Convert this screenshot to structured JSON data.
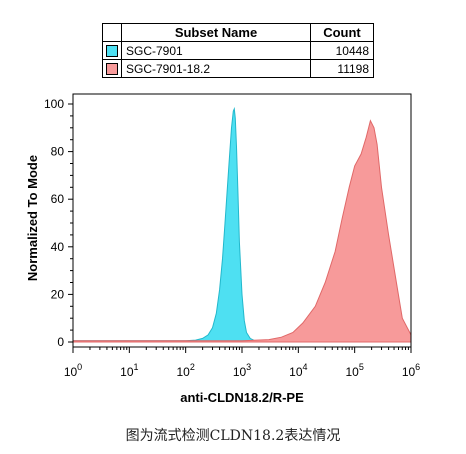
{
  "legend": {
    "header_subset": "Subset Name",
    "header_count": "Count",
    "rows": [
      {
        "name": "SGC-7901",
        "count": "10448",
        "color": "#4ee0f2"
      },
      {
        "name": "SGC-7901-18.2",
        "count": "11198",
        "color": "#f79a9a"
      }
    ]
  },
  "caption": "图为流式检测CLDN18.2表达情况",
  "chart_data": {
    "type": "area",
    "title": "",
    "xlabel": "anti-CLDN18.2/R-PE",
    "ylabel": "Normalized To Mode",
    "xscale": "log",
    "xlim": [
      1,
      1000000
    ],
    "ylim": [
      0,
      100
    ],
    "yticks": [
      0,
      20,
      40,
      60,
      80,
      100
    ],
    "xtick_labels": [
      "10^0",
      "10^1",
      "10^2",
      "10^3",
      "10^4",
      "10^5",
      "10^6"
    ],
    "grid": false,
    "series": [
      {
        "name": "SGC-7901",
        "fill": "#4ee0f2",
        "stroke": "#22b8cc",
        "x": [
          1,
          100,
          150,
          200,
          250,
          300,
          350,
          400,
          450,
          500,
          550,
          600,
          650,
          700,
          730,
          760,
          800,
          850,
          900,
          1000,
          1100,
          1200,
          1400,
          1700,
          2000,
          1000000
        ],
        "y": [
          0.5,
          0.5,
          0.8,
          1.5,
          3,
          6,
          12,
          22,
          35,
          50,
          65,
          78,
          90,
          97,
          98,
          94,
          82,
          62,
          42,
          20,
          9,
          4,
          1.5,
          0.5,
          0.3,
          0.3
        ]
      },
      {
        "name": "SGC-7901-18.2",
        "fill": "#f79a9a",
        "stroke": "#e06868",
        "x": [
          1,
          1000,
          3000,
          5000,
          8000,
          12000,
          20000,
          30000,
          45000,
          60000,
          80000,
          100000,
          130000,
          160000,
          190000,
          220000,
          250000,
          300000,
          400000,
          550000,
          700000,
          1000000
        ],
        "y": [
          0.5,
          0.5,
          1,
          2,
          4,
          8,
          15,
          25,
          38,
          52,
          65,
          74,
          79,
          86,
          93,
          90,
          83,
          65,
          45,
          25,
          10,
          3
        ]
      }
    ]
  }
}
